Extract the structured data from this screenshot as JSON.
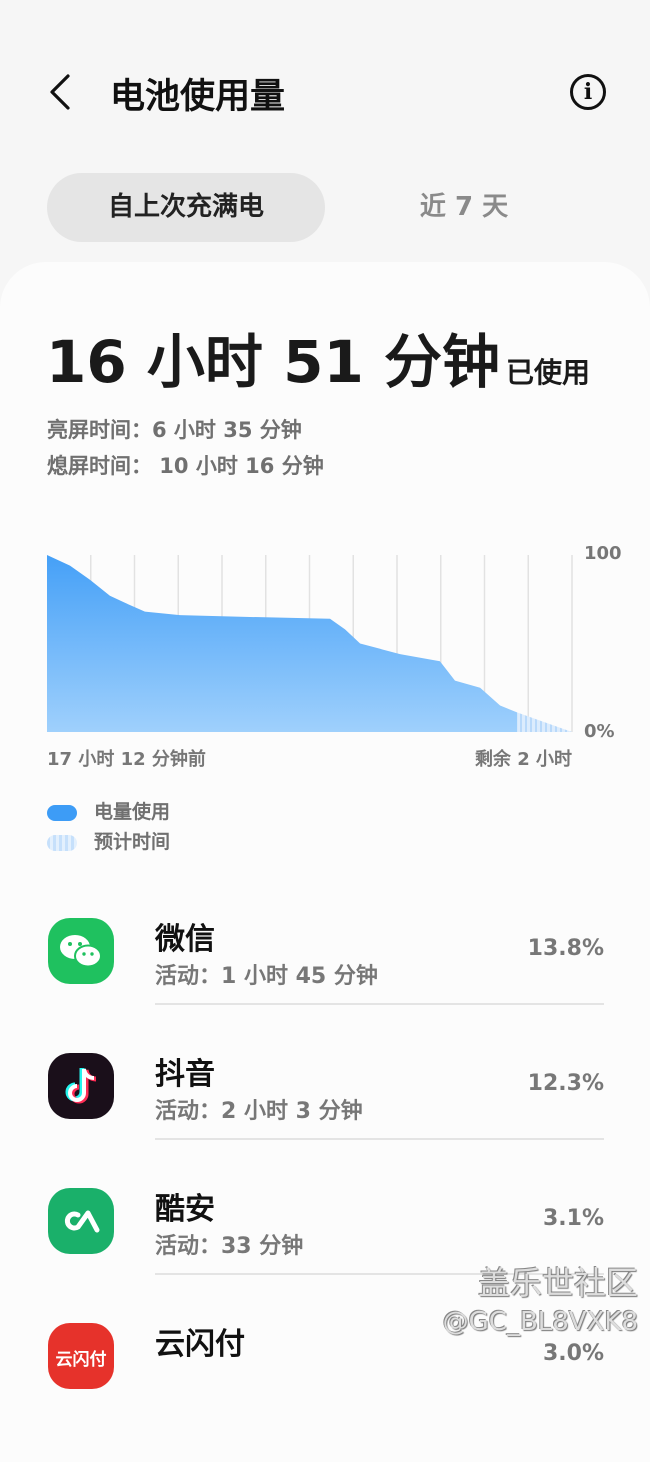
{
  "header": {
    "title": "电池使用量",
    "back_icon": "chevron-left-icon",
    "info_icon": "info-icon"
  },
  "tabs": [
    {
      "label": "自上次充满电",
      "selected": true
    },
    {
      "label": "近 7 天",
      "selected": false
    }
  ],
  "summary": {
    "total": "16 小时 51 分钟",
    "total_suffix": "已使用",
    "screen_on": "亮屏时间：6 小时 35 分钟",
    "screen_off": "熄屏时间： 10 小时 16 分钟"
  },
  "chart_data": {
    "type": "area",
    "x_unit": "hours since full charge",
    "x_range": [
      0,
      19.2
    ],
    "ylim": [
      0,
      100
    ],
    "ytick_labels": [
      "100",
      "0%"
    ],
    "xlabel_left": "17 小时 12 分钟前",
    "xlabel_right": "剩余 2 小时",
    "grid": "vertical",
    "series": [
      {
        "name": "电量使用",
        "color": "#4aa3f8",
        "x": [
          0,
          0.84,
          1.57,
          2.3,
          2.85,
          3.58,
          4.86,
          7.42,
          10.35,
          10.9,
          11.45,
          12.18,
          12.91,
          14.37,
          14.92,
          15.84,
          16.57,
          17.2
        ],
        "y": [
          100,
          94,
          86,
          77,
          73,
          68,
          66,
          65,
          64,
          58,
          50,
          47,
          44,
          40,
          29,
          25,
          15,
          11
        ]
      },
      {
        "name": "预计时间",
        "color": "#c9e2fb",
        "x": [
          17.2,
          19.2
        ],
        "y": [
          11,
          0
        ]
      }
    ]
  },
  "apps": [
    {
      "name": "微信",
      "activity": "活动：1 小时 45 分钟",
      "percent": "13.8%",
      "icon": "wechat-icon",
      "color": "#1fc15f"
    },
    {
      "name": "抖音",
      "activity": "活动：2 小时 3 分钟",
      "percent": "12.3%",
      "icon": "douyin-icon",
      "color": "#1a0f1a"
    },
    {
      "name": "酷安",
      "activity": "活动：33 分钟",
      "percent": "3.1%",
      "icon": "coolapk-icon",
      "color": "#1ab06a"
    },
    {
      "name": "云闪付",
      "activity": "",
      "percent": "3.0%",
      "icon": "unionpay-icon",
      "color": "#e6322b",
      "icon_text": "云闪付"
    }
  ],
  "watermark": {
    "line1": "盖乐世社区",
    "line2": "@GC_BL8VXK8"
  }
}
